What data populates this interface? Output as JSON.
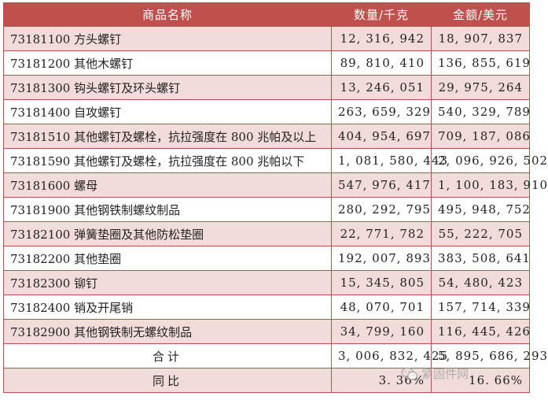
{
  "header": {
    "col1": "商品名称",
    "col2": "数量/千克",
    "col3": "金额/美元"
  },
  "rows": [
    {
      "name": "73181100 方头螺钉",
      "qty": "12, 316, 942",
      "amount": "18, 907, 837"
    },
    {
      "name": "73181200 其他木螺钉",
      "qty": "89, 810, 410",
      "amount": "136, 855, 619"
    },
    {
      "name": "73181300 钩头螺钉及环头螺钉",
      "qty": "13, 246, 051",
      "amount": "29, 975, 264"
    },
    {
      "name": "73181400 自攻螺钉",
      "qty": "263, 659, 329",
      "amount": "540, 329, 789"
    },
    {
      "name": "73181510 其他螺钉及螺栓，抗拉强度在 800 兆帕及以上",
      "qty": "404, 954, 697",
      "amount": "709, 187, 086"
    },
    {
      "name": "73181590 其他螺钉及螺栓，抗拉强度在 800 兆帕以下",
      "qty": "1, 081, 580, 443",
      "amount": "2, 096, 926, 502"
    },
    {
      "name": "73181600 螺母",
      "qty": "547, 976, 417",
      "amount": "1, 100, 183, 910"
    },
    {
      "name": "73181900 其他钢铁制螺纹制品",
      "qty": "280, 292, 795",
      "amount": "495, 948, 752"
    },
    {
      "name": "73182100 弹簧垫圈及其他防松垫圈",
      "qty": "22, 771, 782",
      "amount": "55, 222, 705"
    },
    {
      "name": "73182200 其他垫圈",
      "qty": "192, 007, 893",
      "amount": "383, 508, 641"
    },
    {
      "name": "73182300 铆钉",
      "qty": "15, 345, 805",
      "amount": "54, 480, 423"
    },
    {
      "name": "73182400 销及开尾销",
      "qty": "48, 070, 701",
      "amount": "157, 714, 339"
    },
    {
      "name": "73182900 其他钢铁制无螺纹制品",
      "qty": "34, 799, 160",
      "amount": "116, 445, 426"
    }
  ],
  "total": {
    "label": "合计",
    "qty": "3, 006, 832, 425",
    "amount": "5, 895, 686, 293"
  },
  "yoy": {
    "label": "同比",
    "qty": "3. 36%",
    "amount": "16. 66%"
  },
  "watermark": {
    "text": "紧固件网",
    "icon": "wechat-icon"
  },
  "colors": {
    "header_bg": "#c0504d",
    "row_pink": "#f2dcdb",
    "row_white": "#ffffff"
  }
}
